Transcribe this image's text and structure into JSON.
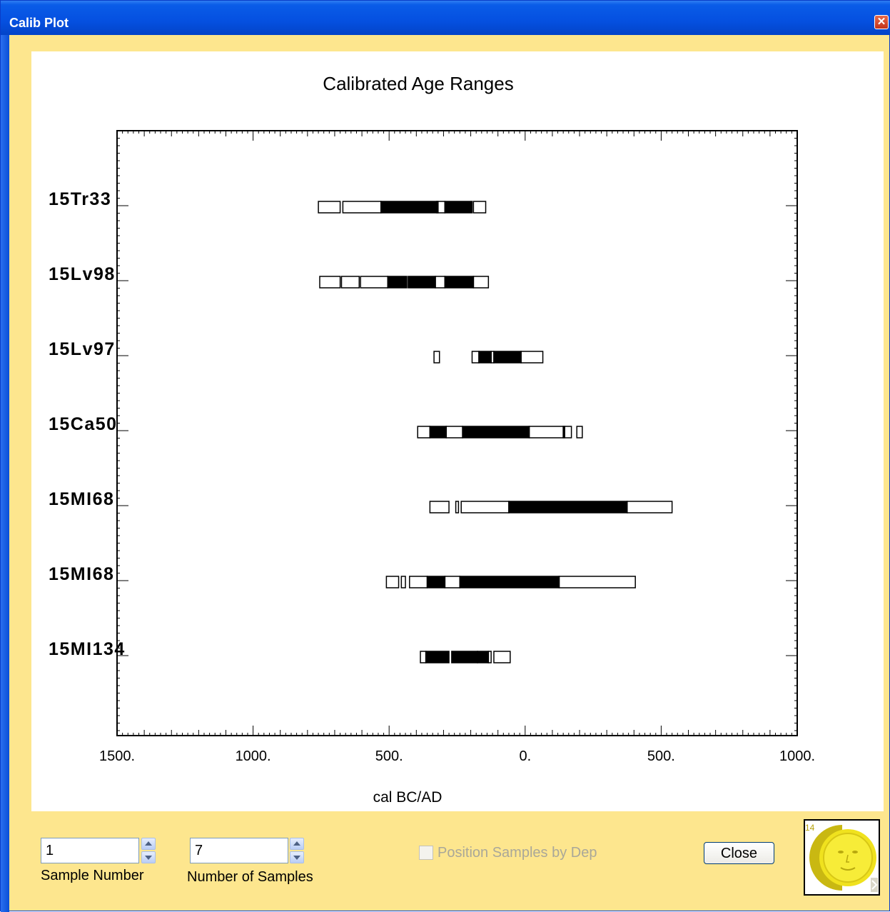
{
  "window": {
    "title": "Calib Plot",
    "close_glyph": "✕",
    "accent_color": "#0550e0",
    "frame_color": "#fde68e"
  },
  "chart_data": {
    "type": "range",
    "title": "Calibrated Age Ranges",
    "xlabel": "cal BC/AD",
    "x_tick_labels": [
      "1500.",
      "1000.",
      "500.",
      "0.",
      "500.",
      "1000."
    ],
    "x_tick_values": [
      -1500,
      -1000,
      -500,
      0,
      500,
      1000
    ],
    "xlim": [
      -1500,
      1000
    ],
    "samples": [
      {
        "name": "15Tr33",
        "open_ranges": [
          [
            -760,
            -680
          ],
          [
            -670,
            -530
          ],
          [
            -325,
            -295
          ],
          [
            -190,
            -145
          ]
        ],
        "filled_ranges": [
          [
            -530,
            -320
          ],
          [
            -295,
            -195
          ]
        ]
      },
      {
        "name": "15Lv98",
        "open_ranges": [
          [
            -755,
            -680
          ],
          [
            -675,
            -610
          ],
          [
            -605,
            -505
          ],
          [
            -330,
            -295
          ],
          [
            -190,
            -135
          ]
        ],
        "filled_ranges": [
          [
            -505,
            -435
          ],
          [
            -430,
            -330
          ],
          [
            -295,
            -190
          ]
        ]
      },
      {
        "name": "15Lv97",
        "open_ranges": [
          [
            -335,
            -315
          ],
          [
            -195,
            -170
          ],
          [
            -125,
            -115
          ],
          [
            -15,
            65
          ]
        ],
        "filled_ranges": [
          [
            -170,
            -125
          ],
          [
            -115,
            -15
          ]
        ]
      },
      {
        "name": "15Ca50",
        "open_ranges": [
          [
            -395,
            -350
          ],
          [
            -290,
            -230
          ],
          [
            15,
            140
          ],
          [
            145,
            170
          ],
          [
            190,
            210
          ]
        ],
        "filled_ranges": [
          [
            -350,
            -290
          ],
          [
            -230,
            15
          ],
          [
            140,
            145
          ]
        ]
      },
      {
        "name": "15MI68",
        "open_ranges": [
          [
            -350,
            -280
          ],
          [
            -255,
            -245
          ],
          [
            -235,
            -60
          ],
          [
            375,
            540
          ]
        ],
        "filled_ranges": [
          [
            -60,
            375
          ]
        ]
      },
      {
        "name": "15MI68",
        "open_ranges": [
          [
            -510,
            -465
          ],
          [
            -455,
            -440
          ],
          [
            -425,
            -360
          ],
          [
            -295,
            -240
          ],
          [
            125,
            405
          ]
        ],
        "filled_ranges": [
          [
            -360,
            -295
          ],
          [
            -240,
            125
          ]
        ]
      },
      {
        "name": "15MI134",
        "open_ranges": [
          [
            -385,
            -365
          ],
          [
            -135,
            -125
          ],
          [
            -115,
            -55
          ]
        ],
        "filled_ranges": [
          [
            -365,
            -280
          ],
          [
            -270,
            -175
          ],
          [
            -175,
            -135
          ]
        ]
      }
    ],
    "grid": false,
    "legend": "none"
  },
  "controls": {
    "sample_number": {
      "value": "1",
      "label": "Sample Number"
    },
    "number_of_samples": {
      "value": "7",
      "label": "Number of Samples"
    },
    "position_checkbox": {
      "label": "Position Samples by Dep",
      "checked": false,
      "enabled": false
    },
    "close_label": "Close",
    "logo": {
      "badge": "14",
      "icon": "moon-face-logo-icon"
    }
  }
}
